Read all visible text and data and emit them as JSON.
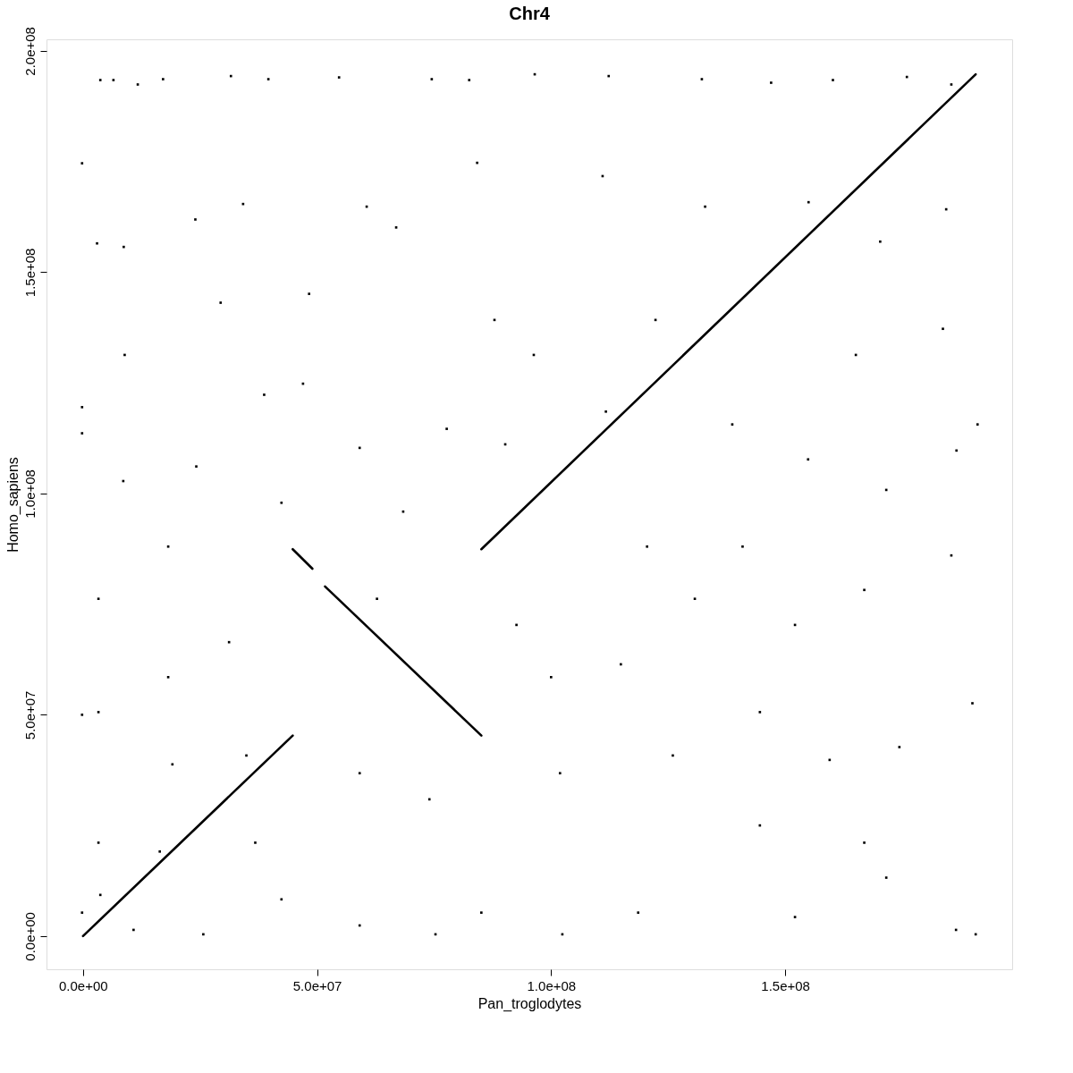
{
  "chart_data": {
    "type": "scatter",
    "title": "Chr4",
    "xlabel": "Pan_troglodytes",
    "ylabel": "Homo_sapiens",
    "xlim": [
      -7800000.0,
      198500000.0
    ],
    "ylim": [
      -7500000.0,
      202600000.0
    ],
    "xticks": [
      {
        "value": 0,
        "label": "0.0e+00"
      },
      {
        "value": 50000000.0,
        "label": "5.0e+07"
      },
      {
        "value": 100000000.0,
        "label": "1.0e+08"
      },
      {
        "value": 150000000.0,
        "label": "1.5e+08"
      }
    ],
    "yticks": [
      {
        "value": 0,
        "label": "0.0e+00"
      },
      {
        "value": 50000000.0,
        "label": "5.0e+07"
      },
      {
        "value": 100000000.0,
        "label": "1.0e+08"
      },
      {
        "value": 150000000.0,
        "label": "1.5e+08"
      },
      {
        "value": 200000000.0,
        "label": "2.0e+08"
      }
    ],
    "grid": false,
    "series": [
      {
        "type": "line",
        "color": "#000000",
        "line_style": "solid",
        "x": [
          0,
          44800000.0
        ],
        "values": [
          0,
          45300000.0
        ]
      },
      {
        "type": "line",
        "color": "#000000",
        "line_style": "solid",
        "x": [
          44800000.0,
          49000000.0,
          50000000.0,
          51700000.0,
          85100000.0
        ],
        "values": [
          87400000.0,
          83000000.0,
          null,
          79000000.0,
          45300000.0
        ]
      },
      {
        "type": "line",
        "color": "#000000",
        "line_style": "solid",
        "x": [
          85100000.0,
          190700000.0
        ],
        "values": [
          87400000.0,
          194700000.0
        ]
      },
      {
        "color": "#000000",
        "marker": "square",
        "x": [
          3700000.0,
          6500000.0,
          11700000.0,
          17100000.0,
          31600000.0,
          39600000.0,
          54700000.0,
          74500000.0,
          82500000.0,
          96500000.0,
          112300000.0,
          132200000.0,
          147000000.0,
          160200000.0,
          176000000.0,
          185500000.0,
          -200000.0,
          3000000.0,
          8700000.0,
          24000000.0,
          34200000.0,
          60600000.0,
          66900000.0,
          84200000.0,
          111000000.0,
          132900000.0,
          155000000.0,
          170300000.0,
          184400000.0,
          -200000.0,
          8600000.0,
          24200000.0,
          38700000.0,
          47000000.0,
          59100000.0,
          77700000.0,
          90200000.0,
          111700000.0,
          138700000.0,
          154900000.0,
          171600000.0,
          186600000.0,
          -200000.0,
          3300000.0,
          18200000.0,
          31200000.0,
          62800000.0,
          92600000.0,
          114900000.0,
          130700000.0,
          152100000.0,
          166900000.0,
          185500000.0,
          -200000.0,
          3300000.0,
          19100000.0,
          34900000.0,
          59100000.0,
          74000000.0,
          101900000.0,
          126000000.0,
          144600000.0,
          159500000.0,
          174400000.0,
          190000000.0,
          -200000.0,
          3700000.0,
          10800000.0,
          25700000.0,
          42400000.0,
          59100000.0,
          75300000.0,
          85100000.0,
          102400000.0,
          118600000.0,
          152100000.0,
          171600000.0,
          186500000.0,
          190700000.0,
          48300000.0,
          87900000.0,
          96300000.0,
          122300000.0,
          165100000.0,
          8900000.0,
          29400000.0,
          191100000.0,
          183700000.0,
          140900000.0,
          120500000.0,
          18200000.0,
          42400000.0,
          68400000.0,
          100000000.0,
          166900000.0,
          144600000.0,
          36800000.0,
          16400000.0,
          3300000.0
        ],
        "values": [
          193400000.0,
          193400000.0,
          192400000.0,
          193600000.0,
          194300000.0,
          193600000.0,
          194000000.0,
          193600000.0,
          193400000.0,
          194700000.0,
          194300000.0,
          193600000.0,
          192800000.0,
          193400000.0,
          194100000.0,
          192400000.0,
          174600000.0,
          156500000.0,
          155700000.0,
          161900000.0,
          165400000.0,
          164800000.0,
          160100000.0,
          174700000.0,
          171700000.0,
          164800000.0,
          165800000.0,
          156900000.0,
          164200000.0,
          119500000.0,
          102800000.0,
          106100000.0,
          122300000.0,
          124800000.0,
          110300000.0,
          114600000.0,
          111100000.0,
          118500000.0,
          115600000.0,
          107700000.0,
          100800000.0,
          109700000.0,
          113600000.0,
          76200000.0,
          58500000.0,
          66400000.0,
          76200000.0,
          70300000.0,
          61400000.0,
          76200000.0,
          70300000.0,
          78200000.0,
          86000000.0,
          50000000.0,
          50600000.0,
          38800000.0,
          40800000.0,
          36800000.0,
          30900000.0,
          36800000.0,
          40800000.0,
          50600000.0,
          39800000.0,
          42700000.0,
          52600000.0,
          5300000.0,
          9300000.0,
          1400000.0,
          400000.0,
          8300000.0,
          2400000.0,
          400000.0,
          5300000.0,
          400000.0,
          5300000.0,
          4300000.0,
          13200000.0,
          1400000.0,
          400000.0,
          145100000.0,
          139200000.0,
          131300000.0,
          139200000.0,
          131300000.0,
          131300000.0,
          143100000.0,
          115600000.0,
          137200000.0,
          88000000.0,
          88000000.0,
          88000000.0,
          97900000.0,
          95900000.0,
          58500000.0,
          21100000.0,
          25000000.0,
          21100000.0,
          19100000.0,
          21100000.0
        ]
      }
    ]
  }
}
